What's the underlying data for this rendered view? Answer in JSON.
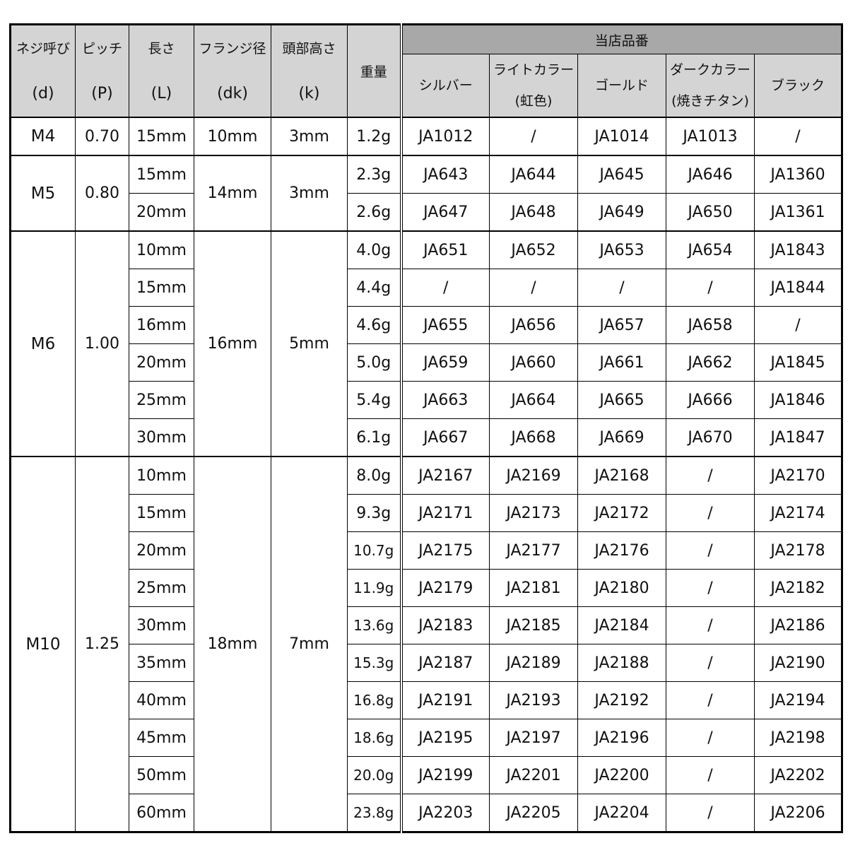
{
  "header": {
    "spec_columns": [
      {
        "line1": "ネジ呼び",
        "line2": "(d)"
      },
      {
        "line1": "ピッチ",
        "line2": "(P)"
      },
      {
        "line1": "長さ",
        "line2": "(L)"
      },
      {
        "line1": "フランジ径",
        "line2": "(dk)"
      },
      {
        "line1": "頭部高さ",
        "line2": "(k)"
      }
    ],
    "weight": "重量",
    "product_group": "当店品番",
    "colors": [
      {
        "line1": "シルバー",
        "line2": ""
      },
      {
        "line1": "ライトカラー",
        "line2": "(虹色)"
      },
      {
        "line1": "ゴールド",
        "line2": ""
      },
      {
        "line1": "ダークカラー",
        "line2": "(焼きチタン)"
      },
      {
        "line1": "ブラック",
        "line2": ""
      }
    ]
  },
  "colors_bg": {
    "header": "#d4d4d4",
    "group_header": "#a8a8a8"
  },
  "groups": [
    {
      "size": "M4",
      "pitch": "0.70",
      "flange": "10mm",
      "head": "3mm",
      "rows": [
        {
          "length": "15mm",
          "weight": "1.2g",
          "codes": [
            "JA1012",
            "/",
            "JA1014",
            "JA1013",
            "/"
          ]
        }
      ]
    },
    {
      "size": "M5",
      "pitch": "0.80",
      "flange": "14mm",
      "head": "3mm",
      "rows": [
        {
          "length": "15mm",
          "weight": "2.3g",
          "codes": [
            "JA643",
            "JA644",
            "JA645",
            "JA646",
            "JA1360"
          ]
        },
        {
          "length": "20mm",
          "weight": "2.6g",
          "codes": [
            "JA647",
            "JA648",
            "JA649",
            "JA650",
            "JA1361"
          ]
        }
      ]
    },
    {
      "size": "M6",
      "pitch": "1.00",
      "flange": "16mm",
      "head": "5mm",
      "rows": [
        {
          "length": "10mm",
          "weight": "4.0g",
          "codes": [
            "JA651",
            "JA652",
            "JA653",
            "JA654",
            "JA1843"
          ]
        },
        {
          "length": "15mm",
          "weight": "4.4g",
          "codes": [
            "/",
            "/",
            "/",
            "/",
            "JA1844"
          ]
        },
        {
          "length": "16mm",
          "weight": "4.6g",
          "codes": [
            "JA655",
            "JA656",
            "JA657",
            "JA658",
            "/"
          ]
        },
        {
          "length": "20mm",
          "weight": "5.0g",
          "codes": [
            "JA659",
            "JA660",
            "JA661",
            "JA662",
            "JA1845"
          ]
        },
        {
          "length": "25mm",
          "weight": "5.4g",
          "codes": [
            "JA663",
            "JA664",
            "JA665",
            "JA666",
            "JA1846"
          ]
        },
        {
          "length": "30mm",
          "weight": "6.1g",
          "codes": [
            "JA667",
            "JA668",
            "JA669",
            "JA670",
            "JA1847"
          ]
        }
      ]
    },
    {
      "size": "M10",
      "pitch": "1.25",
      "flange": "18mm",
      "head": "7mm",
      "rows": [
        {
          "length": "10mm",
          "weight": "8.0g",
          "codes": [
            "JA2167",
            "JA2169",
            "JA2168",
            "/",
            "JA2170"
          ]
        },
        {
          "length": "15mm",
          "weight": "9.3g",
          "codes": [
            "JA2171",
            "JA2173",
            "JA2172",
            "/",
            "JA2174"
          ]
        },
        {
          "length": "20mm",
          "weight": "10.7g",
          "codes": [
            "JA2175",
            "JA2177",
            "JA2176",
            "/",
            "JA2178"
          ]
        },
        {
          "length": "25mm",
          "weight": "11.9g",
          "codes": [
            "JA2179",
            "JA2181",
            "JA2180",
            "/",
            "JA2182"
          ]
        },
        {
          "length": "30mm",
          "weight": "13.6g",
          "codes": [
            "JA2183",
            "JA2185",
            "JA2184",
            "/",
            "JA2186"
          ]
        },
        {
          "length": "35mm",
          "weight": "15.3g",
          "codes": [
            "JA2187",
            "JA2189",
            "JA2188",
            "/",
            "JA2190"
          ]
        },
        {
          "length": "40mm",
          "weight": "16.8g",
          "codes": [
            "JA2191",
            "JA2193",
            "JA2192",
            "/",
            "JA2194"
          ]
        },
        {
          "length": "45mm",
          "weight": "18.6g",
          "codes": [
            "JA2195",
            "JA2197",
            "JA2196",
            "/",
            "JA2198"
          ]
        },
        {
          "length": "50mm",
          "weight": "20.0g",
          "codes": [
            "JA2199",
            "JA2201",
            "JA2200",
            "/",
            "JA2202"
          ]
        },
        {
          "length": "60mm",
          "weight": "23.8g",
          "codes": [
            "JA2203",
            "JA2205",
            "JA2204",
            "/",
            "JA2206"
          ]
        }
      ]
    }
  ]
}
